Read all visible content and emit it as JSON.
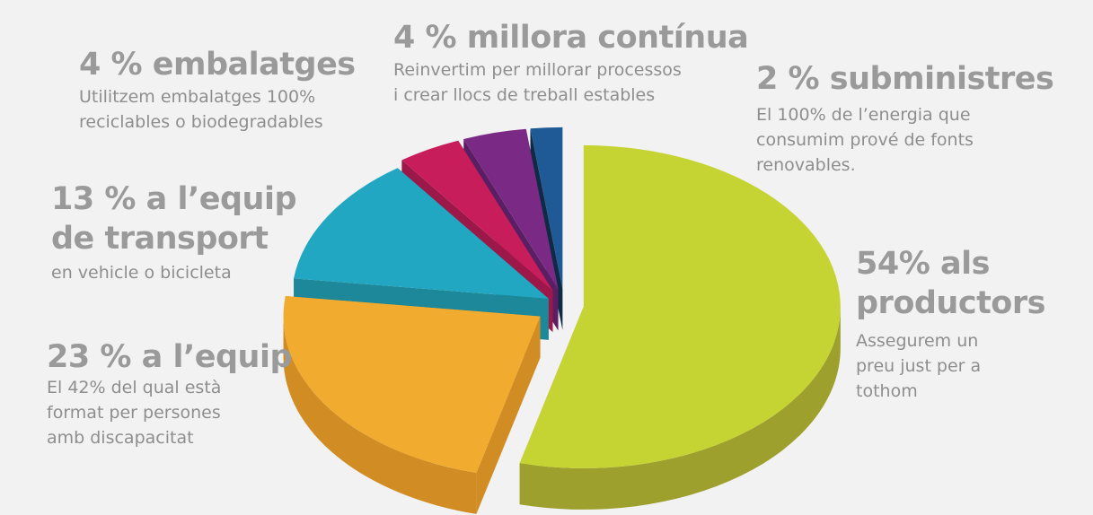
{
  "chart_data": {
    "type": "pie",
    "style": "3d-exploded",
    "slices": [
      {
        "title": "54% als productors",
        "description": [
          "Assegurem un",
          "preu just per a",
          "tothom"
        ],
        "value": 54,
        "color": "#c6d433",
        "side_color": "#9da02c"
      },
      {
        "title": "23 % a l’equip",
        "description": [
          "El 42% del qual està",
          "format per persones",
          "amb discapacitat"
        ],
        "value": 23,
        "color": "#f1ab2f",
        "side_color": "#d18d24"
      },
      {
        "title_lines": [
          "13 % a l’equip",
          "de transport"
        ],
        "description": [
          "en vehicle o bicicleta"
        ],
        "value": 13,
        "color": "#21a7c2",
        "side_color": "#1c8899"
      },
      {
        "title": "4 % embalatges",
        "description": [
          "Utilitzem embalatges 100%",
          "reciclables o biodegradables"
        ],
        "value": 4,
        "color": "#c81d5b",
        "side_color": "#9c1848"
      },
      {
        "title": "4 % millora contínua",
        "description": [
          "Reinvertim per millorar processos",
          "i crear llocs de treball estables"
        ],
        "value": 4,
        "color": "#7a2a85",
        "side_color": "#5a1f63"
      },
      {
        "title": "2 % subministres",
        "description": [
          "El 100% de l’energia que",
          "consumim prové de fonts",
          "renovables."
        ],
        "value": 2,
        "color": "#1f5a96",
        "side_color": "#0f2a44"
      }
    ]
  }
}
